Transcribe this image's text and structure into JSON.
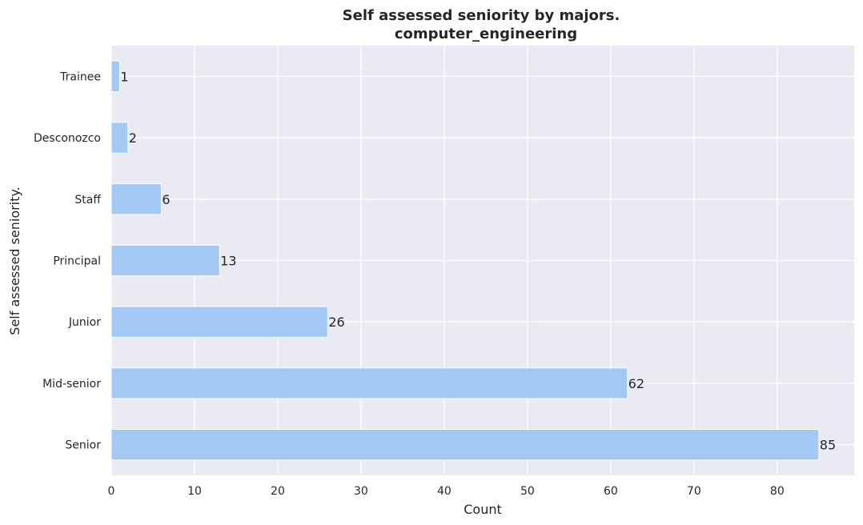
{
  "chart_data": {
    "type": "bar",
    "orientation": "horizontal",
    "title": "Self assessed seniority by majors.",
    "subtitle": "computer_engineering",
    "xlabel": "Count",
    "ylabel": "Self assessed seniority.",
    "categories": [
      "Senior",
      "Mid-senior",
      "Junior",
      "Principal",
      "Staff",
      "Desconozco",
      "Trainee"
    ],
    "values": [
      85,
      62,
      26,
      13,
      6,
      2,
      1
    ],
    "value_labels": [
      "85",
      "62",
      "26",
      "13",
      "6",
      "2",
      "1"
    ],
    "xlim": [
      0,
      89.25
    ],
    "xticks": [
      0,
      10,
      20,
      30,
      40,
      50,
      60,
      70,
      80
    ],
    "xtick_labels": [
      "0",
      "10",
      "20",
      "30",
      "40",
      "50",
      "60",
      "70",
      "80"
    ],
    "grid": true,
    "colors": {
      "bar": "#a1c9f4",
      "plot_background": "#eaeaf2",
      "grid": "#ffffff",
      "text": "#262626"
    }
  }
}
